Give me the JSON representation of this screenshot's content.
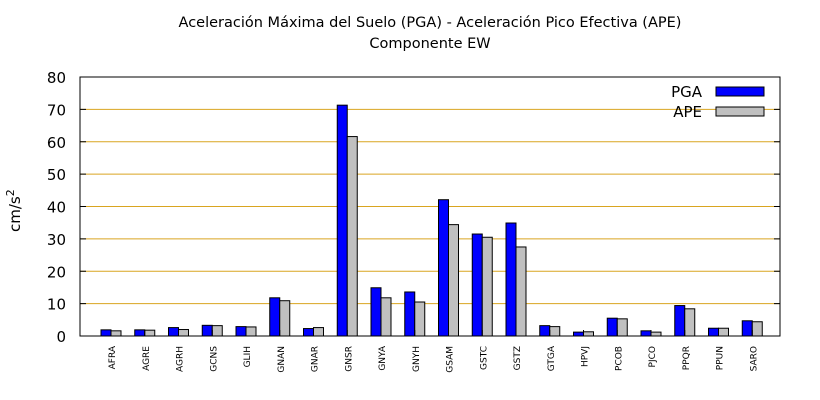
{
  "chart_data": {
    "type": "bar",
    "title": "Aceleración Máxima del Suelo (PGA) -  Aceleración Pico Efectiva (APE)",
    "subtitle": "Componente EW",
    "xlabel": "",
    "ylabel": "cm/s",
    "ylabel_superscript": "2",
    "ylim": [
      0,
      80
    ],
    "yticks": [
      0,
      10,
      20,
      30,
      40,
      50,
      60,
      70,
      80
    ],
    "grid": true,
    "legend_position": "top-right",
    "categories": [
      "AFRA",
      "AGRE",
      "AGRH",
      "GCNS",
      "GLIH",
      "GNAN",
      "GNAR",
      "GNSR",
      "GNYA",
      "GNYH",
      "GSAM",
      "GSTC",
      "GSTZ",
      "GTGA",
      "HPVJ",
      "PCOB",
      "PJCO",
      "PPQR",
      "PPUN",
      "SARO"
    ],
    "series": [
      {
        "name": "PGA",
        "color": "#0000ff",
        "values": [
          1.9,
          1.9,
          2.6,
          3.3,
          2.9,
          11.8,
          2.3,
          71.3,
          14.9,
          13.6,
          42.1,
          31.5,
          34.9,
          3.2,
          1.2,
          5.5,
          1.6,
          9.4,
          2.4,
          4.7
        ]
      },
      {
        "name": "APE",
        "color": "#c0c0c0",
        "values": [
          1.6,
          1.8,
          2.0,
          3.2,
          2.8,
          10.9,
          2.6,
          61.6,
          11.8,
          10.5,
          34.4,
          30.5,
          27.5,
          2.9,
          1.3,
          5.3,
          1.2,
          8.4,
          2.4,
          4.4
        ]
      }
    ]
  }
}
